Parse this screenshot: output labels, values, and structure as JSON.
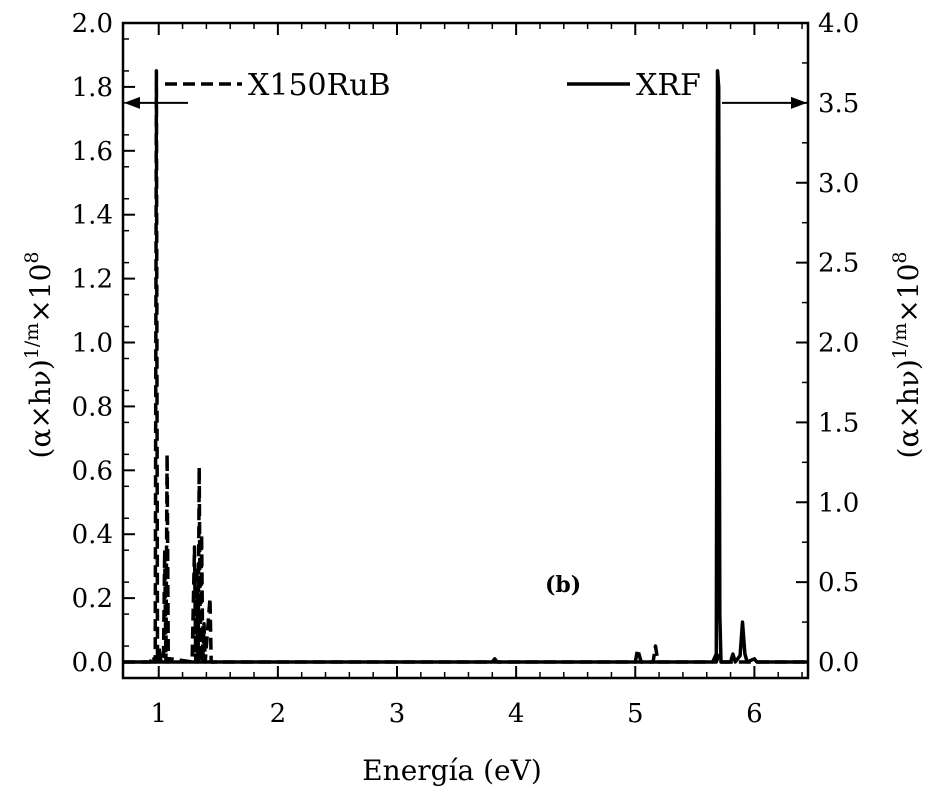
{
  "chart_data": {
    "type": "line",
    "xlabel": "Energía (eV)",
    "ylabel_left": "(α×hν)1/m×108",
    "ylabel_right": "(α×hν)1/m×108",
    "panel_label": "(b)",
    "xlim": [
      0.7,
      6.45
    ],
    "ylim_left": [
      -0.05,
      2.0
    ],
    "ylim_right": [
      -0.1,
      4.0
    ],
    "x_ticks": [
      1,
      2,
      3,
      4,
      5,
      6
    ],
    "x_tick_labels": [
      "1",
      "2",
      "3",
      "4",
      "5",
      "6"
    ],
    "y_left_ticks": [
      0.0,
      0.2,
      0.4,
      0.6,
      0.8,
      1.0,
      1.2,
      1.4,
      1.6,
      1.8,
      2.0
    ],
    "y_left_tick_labels": [
      "0.0",
      "0.2",
      "0.4",
      "0.6",
      "0.8",
      "1.0",
      "1.2",
      "1.4",
      "1.6",
      "1.8",
      "2.0"
    ],
    "y_right_ticks": [
      0.0,
      0.5,
      1.0,
      1.5,
      2.0,
      2.5,
      3.0,
      3.5,
      4.0
    ],
    "y_right_tick_labels": [
      "0.0",
      "0.5",
      "1.0",
      "1.5",
      "2.0",
      "2.5",
      "3.0",
      "3.5",
      "4.0"
    ],
    "legend": [
      {
        "label": "X150RuB",
        "style": "dashed",
        "axis": "left"
      },
      {
        "label": "XRF",
        "style": "solid",
        "axis": "right"
      }
    ],
    "series": [
      {
        "name": "X150RuB",
        "axis": "left",
        "style": "dashed",
        "points": [
          [
            0.7,
            0.0
          ],
          [
            0.93,
            0.0
          ],
          [
            0.95,
            0.02
          ],
          [
            0.97,
            0.0
          ],
          [
            0.98,
            1.85
          ],
          [
            0.99,
            0.0
          ],
          [
            1.0,
            0.05
          ],
          [
            1.02,
            0.0
          ],
          [
            1.04,
            0.02
          ],
          [
            1.05,
            0.35
          ],
          [
            1.06,
            0.0
          ],
          [
            1.07,
            0.65
          ],
          [
            1.08,
            0.0
          ],
          [
            1.1,
            0.01
          ],
          [
            1.28,
            0.0
          ],
          [
            1.3,
            0.36
          ],
          [
            1.31,
            0.0
          ],
          [
            1.32,
            0.3
          ],
          [
            1.33,
            0.0
          ],
          [
            1.34,
            0.61
          ],
          [
            1.35,
            0.0
          ],
          [
            1.36,
            0.4
          ],
          [
            1.37,
            0.0
          ],
          [
            1.38,
            0.12
          ],
          [
            1.39,
            0.0
          ],
          [
            1.43,
            0.2
          ],
          [
            1.44,
            0.0
          ],
          [
            1.5,
            0.0
          ],
          [
            3.8,
            0.0
          ],
          [
            3.82,
            0.01
          ],
          [
            3.84,
            0.0
          ],
          [
            5.0,
            0.0
          ],
          [
            5.02,
            0.04
          ],
          [
            5.05,
            0.0
          ],
          [
            5.15,
            0.0
          ],
          [
            5.17,
            0.05
          ],
          [
            5.19,
            0.0
          ],
          [
            5.68,
            0.0
          ],
          [
            5.7,
            0.02
          ],
          [
            5.72,
            0.0
          ],
          [
            6.45,
            0.0
          ]
        ]
      },
      {
        "name": "XRF",
        "axis": "right",
        "style": "solid",
        "points": [
          [
            0.7,
            0.0
          ],
          [
            5.6,
            0.0
          ],
          [
            5.65,
            0.0
          ],
          [
            5.68,
            0.05
          ],
          [
            5.69,
            3.7
          ],
          [
            5.7,
            3.6
          ],
          [
            5.71,
            0.3
          ],
          [
            5.72,
            0.0
          ],
          [
            5.8,
            0.0
          ],
          [
            5.82,
            0.05
          ],
          [
            5.84,
            0.0
          ],
          [
            5.88,
            0.04
          ],
          [
            5.9,
            0.25
          ],
          [
            5.92,
            0.05
          ],
          [
            5.94,
            0.0
          ],
          [
            6.0,
            0.02
          ],
          [
            6.02,
            0.0
          ],
          [
            6.45,
            0.0
          ]
        ]
      }
    ]
  }
}
